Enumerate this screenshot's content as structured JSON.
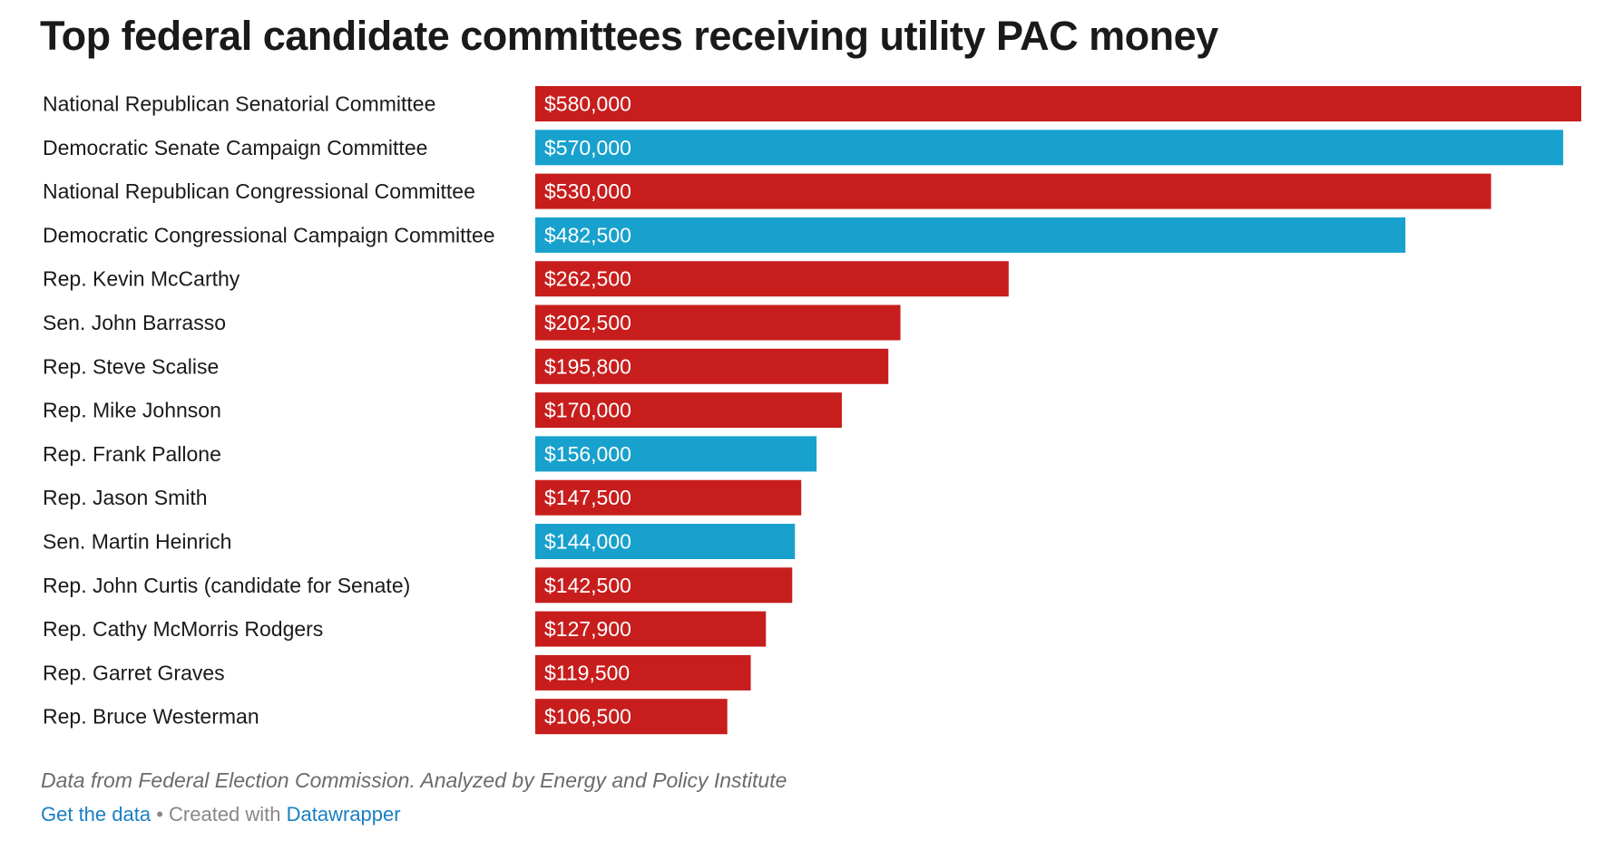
{
  "chart_data": {
    "type": "bar",
    "orientation": "horizontal",
    "title": "Top federal candidate committees receiving utility PAC money",
    "categories": [
      "National Republican Senatorial Committee",
      "Democratic Senate Campaign Committee",
      "National Republican Congressional Committee",
      "Democratic Congressional Campaign Committee",
      "Rep. Kevin McCarthy",
      "Sen. John Barrasso",
      "Rep. Steve Scalise",
      "Rep. Mike Johnson",
      "Rep. Frank Pallone",
      "Rep. Jason Smith",
      "Sen. Martin Heinrich",
      "Rep. John Curtis (candidate for Senate)",
      "Rep. Cathy McMorris Rodgers",
      "Rep. Garret Graves",
      "Rep. Bruce Westerman"
    ],
    "values": [
      580000,
      570000,
      530000,
      482500,
      262500,
      202500,
      195800,
      170000,
      156000,
      147500,
      144000,
      142500,
      127900,
      119500,
      106500
    ],
    "value_labels": [
      "$580,000",
      "$570,000",
      "$530,000",
      "$482,500",
      "$262,500",
      "$202,500",
      "$195,800",
      "$170,000",
      "$156,000",
      "$147,500",
      "$144,000",
      "$142,500",
      "$127,900",
      "$119,500",
      "$106,500"
    ],
    "party": [
      "R",
      "D",
      "R",
      "D",
      "R",
      "R",
      "R",
      "R",
      "D",
      "R",
      "D",
      "R",
      "R",
      "R",
      "R"
    ],
    "colors": {
      "R": "#c71e1d",
      "D": "#18a1cd"
    },
    "xlim": [
      0,
      580000
    ],
    "xlabel": "",
    "ylabel": "",
    "grid": false
  },
  "footer": {
    "source": "Data from Federal Election Commission. Analyzed by Energy and Policy Institute",
    "get_data_link": "Get the data",
    "separator": " • Created with ",
    "datawrapper_link": "Datawrapper"
  }
}
